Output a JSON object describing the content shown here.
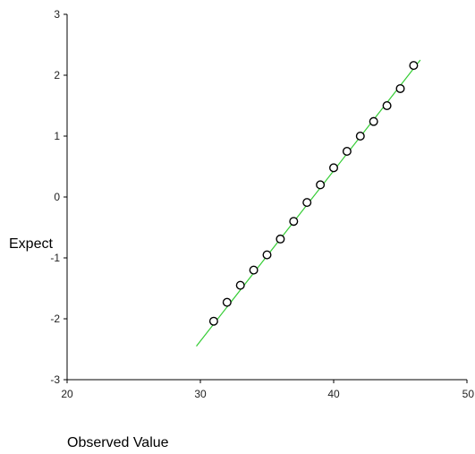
{
  "chart_data": {
    "type": "scatter",
    "title": "",
    "xlabel": "Observed Value",
    "ylabel": "Expect",
    "xlim": [
      20,
      50
    ],
    "ylim": [
      -3,
      3
    ],
    "xticks": [
      20,
      30,
      40,
      50
    ],
    "yticks": [
      -3,
      -2,
      -1,
      0,
      1,
      2,
      3
    ],
    "xtick_labels": [
      "20",
      "30",
      "40",
      "50"
    ],
    "ytick_labels": [
      "-3",
      "-2",
      "-1",
      "0",
      "1",
      "2",
      "3"
    ],
    "grid": false,
    "points": [
      {
        "x": 31,
        "y": -2.04
      },
      {
        "x": 32,
        "y": -1.73
      },
      {
        "x": 33,
        "y": -1.45
      },
      {
        "x": 34,
        "y": -1.2
      },
      {
        "x": 35,
        "y": -0.95
      },
      {
        "x": 36,
        "y": -0.69
      },
      {
        "x": 37,
        "y": -0.4
      },
      {
        "x": 38,
        "y": -0.09
      },
      {
        "x": 39,
        "y": 0.2
      },
      {
        "x": 40,
        "y": 0.48
      },
      {
        "x": 41,
        "y": 0.75
      },
      {
        "x": 42,
        "y": 1.0
      },
      {
        "x": 43,
        "y": 1.24
      },
      {
        "x": 44,
        "y": 1.5
      },
      {
        "x": 45,
        "y": 1.78
      },
      {
        "x": 46,
        "y": 2.16
      }
    ],
    "reference_line": {
      "x": [
        29.7,
        46.5
      ],
      "y": [
        -2.45,
        2.25
      ]
    },
    "colors": {
      "axis": "#000000",
      "points_stroke": "#000000",
      "points_fill": "#ffffff",
      "reference_line": "#33cc33"
    }
  }
}
